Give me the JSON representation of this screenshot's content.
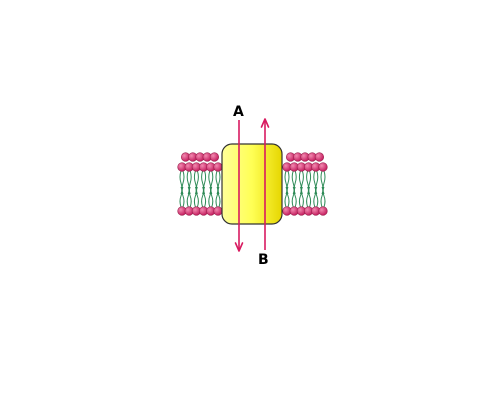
{
  "diagram": {
    "labels": {
      "arrow_a": "A",
      "arrow_b": "B"
    },
    "colors": {
      "lipid_head": "#d8336e",
      "lipid_head_outline": "#9a1f4c",
      "lipid_tail": "#2e8b57",
      "protein_fill": "#ffff66",
      "protein_outline": "#333333",
      "arrow": "#d81b60"
    },
    "arrows": [
      {
        "label_key": "arrow_a",
        "direction": "down"
      },
      {
        "label_key": "arrow_b",
        "direction": "up"
      }
    ]
  }
}
